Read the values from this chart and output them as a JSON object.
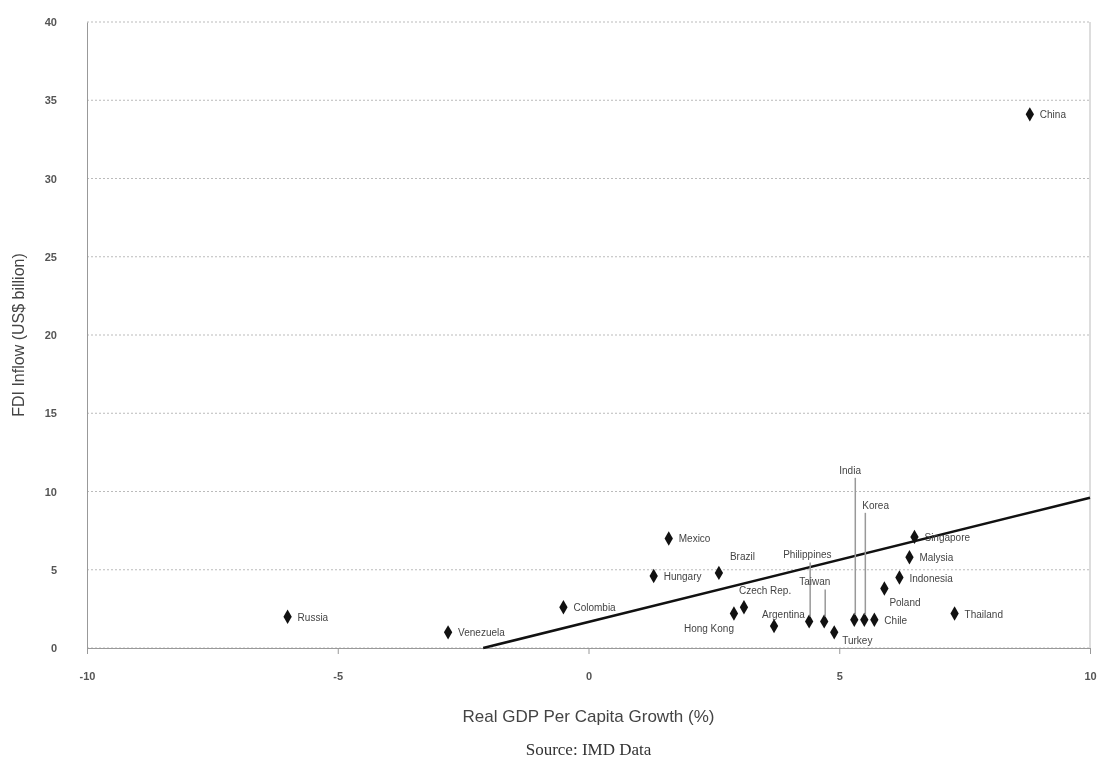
{
  "chart_data": {
    "type": "scatter",
    "xlabel": "Real GDP Per Capita Growth (%)",
    "ylabel": "FDI Inflow (US$ billion)",
    "xlim": [
      -10,
      10
    ],
    "xticks": [
      -10,
      -5,
      0,
      5,
      10
    ],
    "ylim": [
      0,
      40
    ],
    "yticks": [
      0,
      5,
      10,
      15,
      20,
      25,
      30,
      35,
      40
    ],
    "grid": "y",
    "marker": "diamond",
    "series": [
      {
        "color": "#111111",
        "x": [
          -6,
          -2.8,
          -0.5,
          1.3,
          1.6,
          2.6,
          2.9,
          3.1,
          3.7,
          4.4,
          4.7,
          4.9,
          5.3,
          5.5,
          5.7,
          5.9,
          6.2,
          6.4,
          6.5,
          7.3,
          8.8
        ],
        "values": [
          2.0,
          1.0,
          2.6,
          4.6,
          7.0,
          4.8,
          2.2,
          2.6,
          1.4,
          1.7,
          1.7,
          1.0,
          1.8,
          1.8,
          1.8,
          3.8,
          4.5,
          5.8,
          7.1,
          2.2,
          34.1
        ]
      },
      {
        "type": "line",
        "color": "#111111",
        "marker": "none",
        "x": [
          -2.1,
          10
        ],
        "values": [
          0,
          9.6
        ]
      }
    ],
    "annotations": [
      {
        "text": "Russia",
        "x": -6,
        "y": 2.0
      },
      {
        "text": "Venezuela",
        "x": -2.8,
        "y": 1.0
      },
      {
        "text": "Colombia",
        "x": -0.5,
        "y": 2.6
      },
      {
        "text": "Hungary",
        "x": 1.3,
        "y": 4.6
      },
      {
        "text": "Mexico",
        "x": 1.6,
        "y": 7.0
      },
      {
        "text": "Brazil",
        "x": 2.6,
        "y": 4.8
      },
      {
        "text": "Hong Kong",
        "x": 2.9,
        "y": 2.2
      },
      {
        "text": "Czech Rep.",
        "x": 3.1,
        "y": 2.6
      },
      {
        "text": "Argentina",
        "x": 3.7,
        "y": 1.4
      },
      {
        "text": "Philippines",
        "x": 4.4,
        "y": 1.7
      },
      {
        "text": "Taiwan",
        "x": 4.7,
        "y": 1.7
      },
      {
        "text": "Turkey",
        "x": 4.9,
        "y": 1.0
      },
      {
        "text": "India",
        "x": 5.3,
        "y": 1.8
      },
      {
        "text": "Korea",
        "x": 5.5,
        "y": 1.8
      },
      {
        "text": "Chile",
        "x": 5.7,
        "y": 1.8
      },
      {
        "text": "Poland",
        "x": 5.9,
        "y": 3.8
      },
      {
        "text": "Indonesia",
        "x": 6.2,
        "y": 4.5
      },
      {
        "text": "Malysia",
        "x": 6.4,
        "y": 5.8
      },
      {
        "text": "Singapore",
        "x": 6.5,
        "y": 7.1
      },
      {
        "text": "Thailand",
        "x": 7.3,
        "y": 2.2
      },
      {
        "text": "China",
        "x": 8.8,
        "y": 34.1
      },
      "Source: IMD Data"
    ]
  }
}
